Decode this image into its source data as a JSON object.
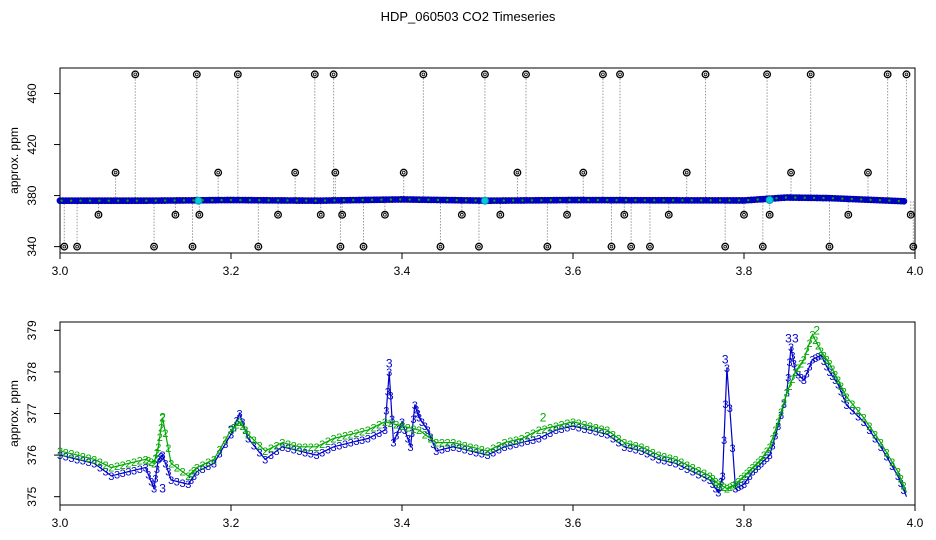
{
  "title": "HDP_060503  CO2 Timeseries",
  "colors": {
    "series3": "#0000cc",
    "series2": "#00aa00",
    "outlier": "#000000",
    "guide": "#999999",
    "highlight": "#00ccdd"
  },
  "chart_data": [
    {
      "type": "scatter",
      "ylabel": "approx. ppm",
      "xlim": [
        3.0,
        4.0
      ],
      "ylim": [
        335,
        480
      ],
      "xticks": [
        "3.0",
        "3.2",
        "3.4",
        "3.6",
        "3.8",
        "4.0"
      ],
      "yticks": [
        "340",
        "380",
        "420",
        "460"
      ],
      "ytick_values": [
        340,
        380,
        420,
        460
      ],
      "baseline": [
        [
          3.0,
          376
        ],
        [
          3.1,
          376
        ],
        [
          3.2,
          376.5
        ],
        [
          3.3,
          376
        ],
        [
          3.4,
          377
        ],
        [
          3.5,
          376
        ],
        [
          3.6,
          376.5
        ],
        [
          3.7,
          376.3
        ],
        [
          3.8,
          376.2
        ],
        [
          3.85,
          378.5
        ],
        [
          3.9,
          378
        ],
        [
          3.99,
          375.5
        ]
      ],
      "outliers": [
        {
          "x": 3.005,
          "y": 340
        },
        {
          "x": 3.02,
          "y": 340
        },
        {
          "x": 3.045,
          "y": 365
        },
        {
          "x": 3.065,
          "y": 398
        },
        {
          "x": 3.088,
          "y": 475
        },
        {
          "x": 3.11,
          "y": 340
        },
        {
          "x": 3.135,
          "y": 365
        },
        {
          "x": 3.155,
          "y": 340
        },
        {
          "x": 3.16,
          "y": 475
        },
        {
          "x": 3.163,
          "y": 365
        },
        {
          "x": 3.185,
          "y": 398
        },
        {
          "x": 3.208,
          "y": 475
        },
        {
          "x": 3.232,
          "y": 340
        },
        {
          "x": 3.255,
          "y": 365
        },
        {
          "x": 3.275,
          "y": 398
        },
        {
          "x": 3.298,
          "y": 475
        },
        {
          "x": 3.305,
          "y": 365
        },
        {
          "x": 3.32,
          "y": 475
        },
        {
          "x": 3.322,
          "y": 398
        },
        {
          "x": 3.328,
          "y": 340
        },
        {
          "x": 3.33,
          "y": 365
        },
        {
          "x": 3.355,
          "y": 340
        },
        {
          "x": 3.38,
          "y": 365
        },
        {
          "x": 3.402,
          "y": 398
        },
        {
          "x": 3.425,
          "y": 475
        },
        {
          "x": 3.445,
          "y": 340
        },
        {
          "x": 3.47,
          "y": 365
        },
        {
          "x": 3.49,
          "y": 340
        },
        {
          "x": 3.497,
          "y": 475
        },
        {
          "x": 3.515,
          "y": 365
        },
        {
          "x": 3.535,
          "y": 398
        },
        {
          "x": 3.545,
          "y": 475
        },
        {
          "x": 3.57,
          "y": 340
        },
        {
          "x": 3.593,
          "y": 365
        },
        {
          "x": 3.612,
          "y": 398
        },
        {
          "x": 3.635,
          "y": 475
        },
        {
          "x": 3.645,
          "y": 340
        },
        {
          "x": 3.655,
          "y": 475
        },
        {
          "x": 3.66,
          "y": 365
        },
        {
          "x": 3.668,
          "y": 340
        },
        {
          "x": 3.69,
          "y": 340
        },
        {
          "x": 3.712,
          "y": 365
        },
        {
          "x": 3.733,
          "y": 398
        },
        {
          "x": 3.755,
          "y": 475
        },
        {
          "x": 3.778,
          "y": 340
        },
        {
          "x": 3.8,
          "y": 365
        },
        {
          "x": 3.822,
          "y": 340
        },
        {
          "x": 3.827,
          "y": 475
        },
        {
          "x": 3.83,
          "y": 365
        },
        {
          "x": 3.855,
          "y": 398
        },
        {
          "x": 3.878,
          "y": 475
        },
        {
          "x": 3.9,
          "y": 340
        },
        {
          "x": 3.922,
          "y": 365
        },
        {
          "x": 3.945,
          "y": 398
        },
        {
          "x": 3.968,
          "y": 475
        },
        {
          "x": 3.99,
          "y": 475
        },
        {
          "x": 3.995,
          "y": 365
        },
        {
          "x": 3.998,
          "y": 340
        }
      ],
      "highlights": [
        {
          "x": 3.162,
          "y": 376
        },
        {
          "x": 3.497,
          "y": 376
        },
        {
          "x": 3.83,
          "y": 376.5
        }
      ]
    },
    {
      "type": "line",
      "ylabel": "approx. ppm",
      "xlim": [
        3.0,
        4.0
      ],
      "ylim": [
        374.8,
        379.2
      ],
      "xticks": [
        "3.0",
        "3.2",
        "3.4",
        "3.6",
        "3.8",
        "4.0"
      ],
      "yticks": [
        "375",
        "376",
        "377",
        "378",
        "379"
      ],
      "ytick_values": [
        375,
        376,
        377,
        378,
        379
      ],
      "series": [
        {
          "marker": "3",
          "x": [
            3.0,
            3.02,
            3.04,
            3.06,
            3.08,
            3.1,
            3.11,
            3.115,
            3.12,
            3.13,
            3.15,
            3.16,
            3.18,
            3.2,
            3.21,
            3.22,
            3.24,
            3.26,
            3.28,
            3.3,
            3.32,
            3.34,
            3.36,
            3.38,
            3.385,
            3.39,
            3.4,
            3.41,
            3.415,
            3.42,
            3.43,
            3.44,
            3.46,
            3.48,
            3.5,
            3.52,
            3.54,
            3.56,
            3.58,
            3.6,
            3.62,
            3.64,
            3.66,
            3.68,
            3.7,
            3.72,
            3.74,
            3.76,
            3.77,
            3.775,
            3.78,
            3.79,
            3.8,
            3.81,
            3.82,
            3.83,
            3.84,
            3.85,
            3.855,
            3.86,
            3.87,
            3.88,
            3.89,
            3.9,
            3.91,
            3.92,
            3.94,
            3.96,
            3.98,
            3.99
          ],
          "y": [
            376.0,
            375.9,
            375.8,
            375.5,
            375.6,
            375.7,
            375.2,
            375.9,
            376.0,
            375.4,
            375.3,
            375.6,
            375.8,
            376.5,
            377.0,
            376.4,
            375.9,
            376.2,
            376.1,
            376.0,
            376.2,
            376.3,
            376.4,
            376.6,
            378.0,
            376.3,
            376.8,
            376.2,
            377.2,
            376.9,
            376.6,
            376.1,
            376.2,
            376.1,
            376.0,
            376.2,
            376.3,
            376.4,
            376.6,
            376.7,
            376.6,
            376.5,
            376.2,
            376.1,
            375.9,
            375.8,
            375.6,
            375.4,
            375.1,
            375.5,
            378.1,
            375.2,
            375.3,
            375.6,
            375.8,
            376.0,
            376.7,
            377.5,
            378.6,
            378.0,
            377.8,
            378.3,
            378.4,
            378.0,
            377.7,
            377.2,
            376.8,
            376.2,
            375.5,
            375.0
          ],
          "labels": [
            {
              "x": 3.385,
              "y": 378.2
            },
            {
              "x": 3.778,
              "y": 378.3
            },
            {
              "x": 3.852,
              "y": 378.8
            },
            {
              "x": 3.86,
              "y": 378.8
            },
            {
              "x": 3.12,
              "y": 375.2
            },
            {
              "x": 3.2,
              "y": 376.6
            }
          ]
        },
        {
          "marker": "2",
          "x": [
            3.0,
            3.02,
            3.04,
            3.06,
            3.08,
            3.1,
            3.11,
            3.115,
            3.12,
            3.13,
            3.15,
            3.16,
            3.18,
            3.2,
            3.21,
            3.22,
            3.24,
            3.26,
            3.28,
            3.3,
            3.32,
            3.34,
            3.36,
            3.38,
            3.4,
            3.42,
            3.44,
            3.46,
            3.48,
            3.5,
            3.52,
            3.54,
            3.56,
            3.58,
            3.6,
            3.62,
            3.64,
            3.66,
            3.68,
            3.7,
            3.72,
            3.74,
            3.76,
            3.77,
            3.78,
            3.79,
            3.8,
            3.81,
            3.82,
            3.83,
            3.84,
            3.85,
            3.86,
            3.87,
            3.88,
            3.89,
            3.9,
            3.91,
            3.92,
            3.94,
            3.96,
            3.98,
            3.99
          ],
          "y": [
            376.1,
            376.0,
            375.9,
            375.7,
            375.8,
            375.9,
            375.8,
            376.2,
            376.9,
            375.8,
            375.5,
            375.7,
            375.9,
            376.6,
            376.8,
            376.5,
            376.1,
            376.3,
            376.2,
            376.2,
            376.4,
            376.5,
            376.6,
            376.8,
            376.7,
            376.6,
            376.3,
            376.3,
            376.2,
            376.1,
            376.3,
            376.4,
            376.6,
            376.7,
            376.8,
            376.7,
            376.6,
            376.3,
            376.2,
            376.0,
            375.9,
            375.7,
            375.5,
            375.3,
            375.2,
            375.3,
            375.5,
            375.7,
            375.9,
            376.2,
            376.8,
            377.5,
            378.0,
            378.3,
            378.9,
            378.5,
            378.2,
            377.8,
            377.4,
            376.9,
            376.3,
            375.6,
            375.1
          ],
          "labels": [
            {
              "x": 3.12,
              "y": 376.9
            },
            {
              "x": 3.565,
              "y": 376.9
            },
            {
              "x": 3.885,
              "y": 379.0
            }
          ]
        }
      ]
    }
  ]
}
